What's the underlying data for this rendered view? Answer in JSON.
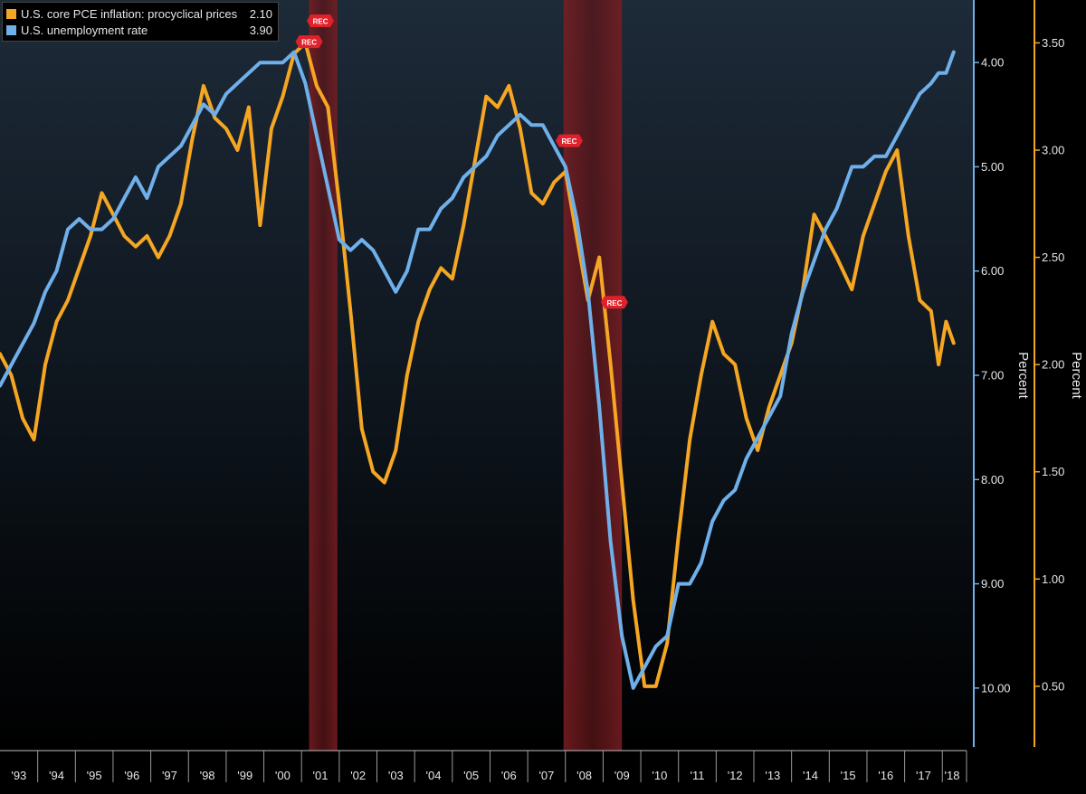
{
  "chart_data": {
    "type": "line",
    "title": "",
    "x_range": [
      1993.0,
      2018.45
    ],
    "x_tick_labels": [
      "'93",
      "'94",
      "'95",
      "'96",
      "'97",
      "'98",
      "'99",
      "'00",
      "'01",
      "'02",
      "'03",
      "'04",
      "'05",
      "'06",
      "'07",
      "'08",
      "'09",
      "'10",
      "'11",
      "'12",
      "'13",
      "'14",
      "'15",
      "'16",
      "'17",
      "'18"
    ],
    "left_axis": {
      "label": "Percent",
      "inverted": true,
      "range": [
        3.4,
        10.6
      ],
      "ticks": [
        "4.00",
        "5.00",
        "6.00",
        "7.00",
        "8.00",
        "9.00",
        "10.00"
      ],
      "color": "#6fb0ea"
    },
    "right_axis": {
      "label": "Percent",
      "range": [
        0.2,
        3.7
      ],
      "ticks": [
        "0.50",
        "1.00",
        "1.50",
        "2.00",
        "2.50",
        "3.00",
        "3.50"
      ],
      "color": "#f5a623"
    },
    "recessions": [
      {
        "start": 2001.2,
        "end": 2001.95,
        "label": "REC"
      },
      {
        "start": 2007.95,
        "end": 2009.5,
        "label": "REC"
      }
    ],
    "rec_markers": [
      {
        "x": 2001.2,
        "axis": "left",
        "y": 3.8,
        "label": "REC"
      },
      {
        "x": 2001.5,
        "axis": "left",
        "y": 3.6,
        "label": "REC"
      },
      {
        "x": 2008.1,
        "axis": "left",
        "y": 4.75,
        "label": "REC"
      },
      {
        "x": 2009.3,
        "axis": "left",
        "y": 6.3,
        "label": "REC"
      }
    ],
    "series": [
      {
        "name": "U.S. core PCE inflation: procyclical prices",
        "last_value": "2.10",
        "axis": "right",
        "color": "#f5a623",
        "x": [
          1993.0,
          1993.3,
          1993.6,
          1993.9,
          1994.2,
          1994.5,
          1994.8,
          1995.1,
          1995.4,
          1995.7,
          1996.0,
          1996.3,
          1996.6,
          1996.9,
          1997.2,
          1997.5,
          1997.8,
          1998.1,
          1998.4,
          1998.7,
          1999.0,
          1999.3,
          1999.6,
          1999.9,
          2000.2,
          2000.5,
          2000.8,
          2001.1,
          2001.4,
          2001.7,
          2002.0,
          2002.3,
          2002.6,
          2002.9,
          2003.2,
          2003.5,
          2003.8,
          2004.1,
          2004.4,
          2004.7,
          2005.0,
          2005.3,
          2005.6,
          2005.9,
          2006.2,
          2006.5,
          2006.8,
          2007.1,
          2007.4,
          2007.7,
          2008.0,
          2008.3,
          2008.6,
          2008.9,
          2009.2,
          2009.5,
          2009.8,
          2010.1,
          2010.4,
          2010.7,
          2011.0,
          2011.3,
          2011.6,
          2011.9,
          2012.2,
          2012.5,
          2012.8,
          2013.1,
          2013.4,
          2013.7,
          2014.0,
          2014.3,
          2014.6,
          2014.9,
          2015.2,
          2015.6,
          2015.9,
          2016.2,
          2016.5,
          2016.8,
          2017.1,
          2017.4,
          2017.7,
          2017.9,
          2018.1,
          2018.3
        ],
        "values": [
          2.05,
          1.95,
          1.75,
          1.65,
          2.0,
          2.2,
          2.3,
          2.45,
          2.6,
          2.8,
          2.7,
          2.6,
          2.55,
          2.6,
          2.5,
          2.6,
          2.75,
          3.05,
          3.3,
          3.15,
          3.1,
          3.0,
          3.2,
          2.65,
          3.1,
          3.25,
          3.45,
          3.5,
          3.3,
          3.2,
          2.75,
          2.25,
          1.7,
          1.5,
          1.45,
          1.6,
          1.95,
          2.2,
          2.35,
          2.45,
          2.4,
          2.65,
          2.95,
          3.25,
          3.2,
          3.3,
          3.1,
          2.8,
          2.75,
          2.85,
          2.9,
          2.6,
          2.3,
          2.5,
          2.0,
          1.45,
          0.9,
          0.5,
          0.5,
          0.7,
          1.2,
          1.65,
          1.95,
          2.2,
          2.05,
          2.0,
          1.75,
          1.6,
          1.8,
          1.95,
          2.1,
          2.35,
          2.7,
          2.6,
          2.5,
          2.35,
          2.6,
          2.75,
          2.9,
          3.0,
          2.6,
          2.3,
          2.25,
          2.0,
          2.2,
          2.1
        ]
      },
      {
        "name": "U.S. unemployment rate",
        "last_value": "3.90",
        "axis": "left",
        "color": "#6fb0ea",
        "x": [
          1993.0,
          1993.3,
          1993.6,
          1993.9,
          1994.2,
          1994.5,
          1994.8,
          1995.1,
          1995.4,
          1995.7,
          1996.0,
          1996.3,
          1996.6,
          1996.9,
          1997.2,
          1997.5,
          1997.8,
          1998.1,
          1998.4,
          1998.7,
          1999.0,
          1999.3,
          1999.6,
          1999.9,
          2000.2,
          2000.5,
          2000.8,
          2001.1,
          2001.4,
          2001.7,
          2002.0,
          2002.3,
          2002.6,
          2002.9,
          2003.2,
          2003.5,
          2003.8,
          2004.1,
          2004.4,
          2004.7,
          2005.0,
          2005.3,
          2005.6,
          2005.9,
          2006.2,
          2006.5,
          2006.8,
          2007.1,
          2007.4,
          2007.7,
          2008.0,
          2008.3,
          2008.6,
          2008.9,
          2009.2,
          2009.5,
          2009.8,
          2010.1,
          2010.4,
          2010.7,
          2011.0,
          2011.3,
          2011.6,
          2011.9,
          2012.2,
          2012.5,
          2012.8,
          2013.1,
          2013.4,
          2013.7,
          2014.0,
          2014.3,
          2014.6,
          2014.9,
          2015.2,
          2015.6,
          2015.9,
          2016.2,
          2016.5,
          2016.8,
          2017.1,
          2017.4,
          2017.7,
          2017.9,
          2018.1,
          2018.3
        ],
        "values": [
          7.1,
          6.9,
          6.7,
          6.5,
          6.2,
          6.0,
          5.6,
          5.5,
          5.6,
          5.6,
          5.5,
          5.3,
          5.1,
          5.3,
          5.0,
          4.9,
          4.8,
          4.6,
          4.4,
          4.5,
          4.3,
          4.2,
          4.1,
          4.0,
          4.0,
          4.0,
          3.9,
          4.2,
          4.7,
          5.2,
          5.7,
          5.8,
          5.7,
          5.8,
          6.0,
          6.2,
          6.0,
          5.6,
          5.6,
          5.4,
          5.3,
          5.1,
          5.0,
          4.9,
          4.7,
          4.6,
          4.5,
          4.6,
          4.6,
          4.8,
          5.0,
          5.5,
          6.2,
          7.3,
          8.6,
          9.5,
          10.0,
          9.8,
          9.6,
          9.5,
          9.0,
          9.0,
          8.8,
          8.4,
          8.2,
          8.1,
          7.8,
          7.6,
          7.4,
          7.2,
          6.6,
          6.2,
          5.9,
          5.6,
          5.4,
          5.0,
          5.0,
          4.9,
          4.9,
          4.7,
          4.5,
          4.3,
          4.2,
          4.1,
          4.1,
          3.9
        ]
      }
    ]
  }
}
